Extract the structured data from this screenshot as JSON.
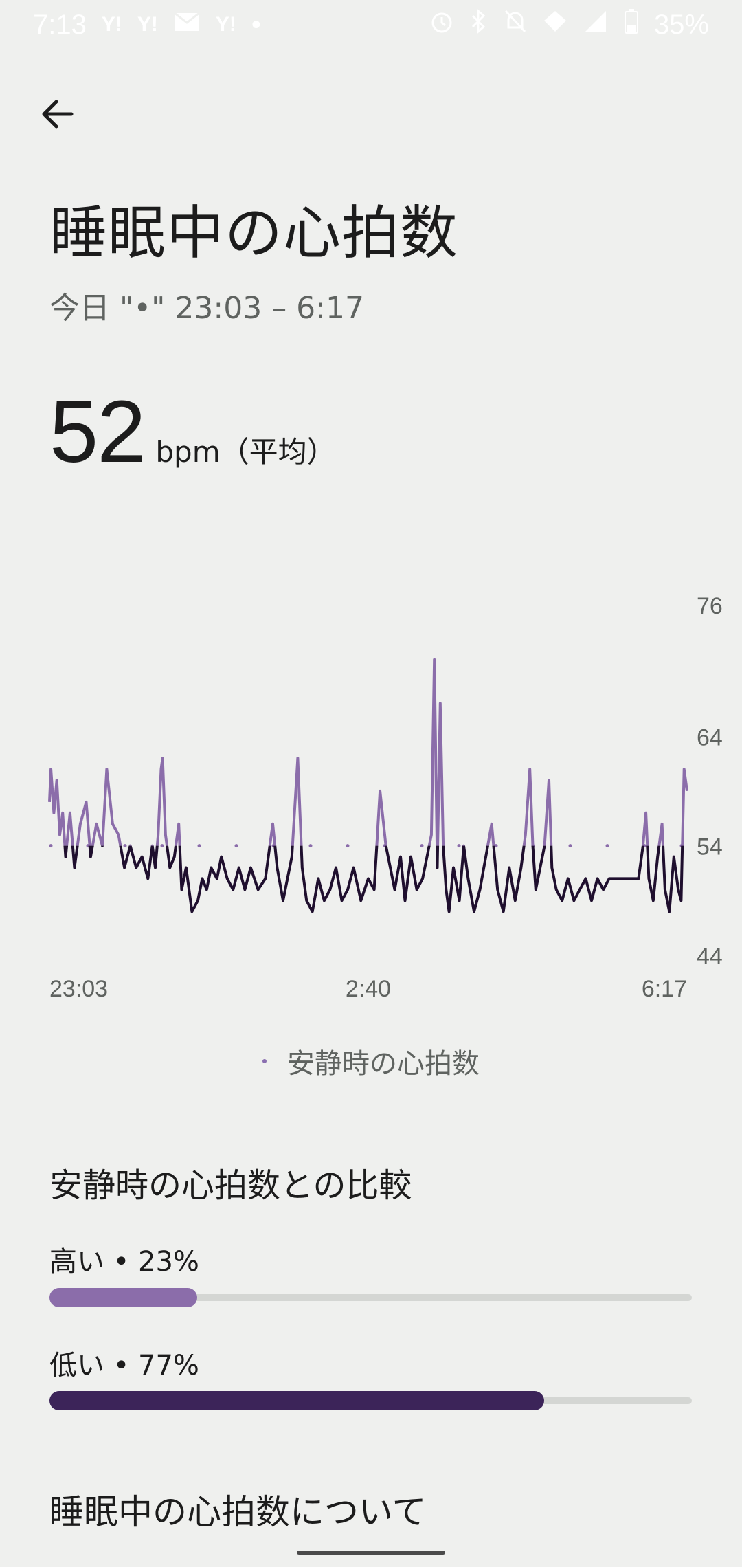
{
  "status_bar": {
    "time": "7:13",
    "notification_icons": [
      "Y!",
      "Y!",
      "mail-icon",
      "Y!",
      "•"
    ],
    "battery": "35%"
  },
  "header": {
    "title": "睡眠中の心拍数",
    "subtitle": "今日 \"•\" 23:03 – 6:17"
  },
  "average": {
    "value": "52",
    "unit": "bpm（平均）"
  },
  "chart_data": {
    "type": "line",
    "x_labels": [
      "23:03",
      "2:40",
      "6:17"
    ],
    "y_ticks": [
      "76",
      "64",
      "54",
      "44"
    ],
    "ylim": [
      44,
      76
    ],
    "resting_heart_rate": 54,
    "series": [
      {
        "name": "安静時の心拍数",
        "points": [
          [
            "23:03",
            58
          ],
          [
            "23:04",
            61
          ],
          [
            "23:06",
            57
          ],
          [
            "23:08",
            60
          ],
          [
            "23:10",
            55
          ],
          [
            "23:12",
            57
          ],
          [
            "23:14",
            53
          ],
          [
            "23:17",
            57
          ],
          [
            "23:20",
            52
          ],
          [
            "23:24",
            56
          ],
          [
            "23:28",
            58
          ],
          [
            "23:31",
            53
          ],
          [
            "23:35",
            56
          ],
          [
            "23:39",
            54
          ],
          [
            "23:42",
            61
          ],
          [
            "23:46",
            56
          ],
          [
            "23:50",
            55
          ],
          [
            "23:54",
            52
          ],
          [
            "23:58",
            54
          ],
          [
            "0:02",
            52
          ],
          [
            "0:06",
            53
          ],
          [
            "0:10",
            51
          ],
          [
            "0:13",
            54
          ],
          [
            "0:15",
            52
          ],
          [
            "0:17",
            55
          ],
          [
            "0:19",
            61
          ],
          [
            "0:20",
            62
          ],
          [
            "0:22",
            55
          ],
          [
            "0:25",
            52
          ],
          [
            "0:28",
            53
          ],
          [
            "0:31",
            56
          ],
          [
            "0:33",
            50
          ],
          [
            "0:36",
            52
          ],
          [
            "0:40",
            48
          ],
          [
            "0:44",
            49
          ],
          [
            "0:47",
            51
          ],
          [
            "0:50",
            50
          ],
          [
            "0:53",
            52
          ],
          [
            "0:57",
            51
          ],
          [
            "1:00",
            53
          ],
          [
            "1:04",
            51
          ],
          [
            "1:08",
            50
          ],
          [
            "1:12",
            52
          ],
          [
            "1:16",
            50
          ],
          [
            "1:20",
            52
          ],
          [
            "1:25",
            50
          ],
          [
            "1:30",
            51
          ],
          [
            "1:35",
            56
          ],
          [
            "1:38",
            52
          ],
          [
            "1:42",
            49
          ],
          [
            "1:45",
            51
          ],
          [
            "1:48",
            53
          ],
          [
            "1:52",
            62
          ],
          [
            "1:55",
            52
          ],
          [
            "1:58",
            49
          ],
          [
            "2:02",
            48
          ],
          [
            "2:06",
            51
          ],
          [
            "2:10",
            49
          ],
          [
            "2:14",
            50
          ],
          [
            "2:18",
            52
          ],
          [
            "2:22",
            49
          ],
          [
            "2:26",
            50
          ],
          [
            "2:30",
            52
          ],
          [
            "2:35",
            49
          ],
          [
            "2:40",
            51
          ],
          [
            "2:44",
            50
          ],
          [
            "2:48",
            59
          ],
          [
            "2:52",
            54
          ],
          [
            "2:55",
            52
          ],
          [
            "2:58",
            50
          ],
          [
            "3:02",
            53
          ],
          [
            "3:05",
            49
          ],
          [
            "3:09",
            53
          ],
          [
            "3:13",
            50
          ],
          [
            "3:17",
            51
          ],
          [
            "3:20",
            53
          ],
          [
            "3:23",
            55
          ],
          [
            "3:25",
            71
          ],
          [
            "3:27",
            52
          ],
          [
            "3:29",
            67
          ],
          [
            "3:31",
            54
          ],
          [
            "3:33",
            50
          ],
          [
            "3:35",
            48
          ],
          [
            "3:38",
            52
          ],
          [
            "3:42",
            49
          ],
          [
            "3:45",
            54
          ],
          [
            "3:48",
            51
          ],
          [
            "3:52",
            48
          ],
          [
            "3:56",
            50
          ],
          [
            "4:00",
            53
          ],
          [
            "4:04",
            56
          ],
          [
            "4:08",
            50
          ],
          [
            "4:12",
            48
          ],
          [
            "4:16",
            52
          ],
          [
            "4:20",
            49
          ],
          [
            "4:24",
            52
          ],
          [
            "4:27",
            55
          ],
          [
            "4:30",
            61
          ],
          [
            "4:32",
            54
          ],
          [
            "4:34",
            50
          ],
          [
            "4:37",
            52
          ],
          [
            "4:40",
            54
          ],
          [
            "4:43",
            60
          ],
          [
            "4:45",
            52
          ],
          [
            "4:48",
            50
          ],
          [
            "4:52",
            49
          ],
          [
            "4:56",
            51
          ],
          [
            "5:00",
            49
          ],
          [
            "5:04",
            50
          ],
          [
            "5:08",
            51
          ],
          [
            "5:12",
            49
          ],
          [
            "5:16",
            51
          ],
          [
            "5:20",
            50
          ],
          [
            "5:24",
            51
          ],
          [
            "5:28",
            51
          ],
          [
            "5:32",
            51
          ],
          [
            "5:36",
            51
          ],
          [
            "5:40",
            51
          ],
          [
            "5:44",
            51
          ],
          [
            "5:47",
            54
          ],
          [
            "5:49",
            57
          ],
          [
            "5:51",
            51
          ],
          [
            "5:54",
            49
          ],
          [
            "5:57",
            53
          ],
          [
            "6:00",
            56
          ],
          [
            "6:02",
            50
          ],
          [
            "6:05",
            48
          ],
          [
            "6:08",
            53
          ],
          [
            "6:11",
            50
          ],
          [
            "6:13",
            49
          ],
          [
            "6:15",
            61
          ],
          [
            "6:17",
            59
          ]
        ]
      }
    ]
  },
  "legend": {
    "label": "安静時の心拍数"
  },
  "comparison": {
    "title": "安静時の心拍数との比較",
    "high": {
      "label": "高い • 23%",
      "percent": 23,
      "color": "#8b6daa"
    },
    "low": {
      "label": "低い • 77%",
      "percent": 77,
      "color": "#3c2459"
    }
  },
  "about": {
    "title": "睡眠中の心拍数について"
  },
  "colors": {
    "above_resting": "#8b6daa",
    "below_resting": "#1f0f2e",
    "resting_dots": "#8b6daa",
    "axis_text": "#5f6360"
  }
}
